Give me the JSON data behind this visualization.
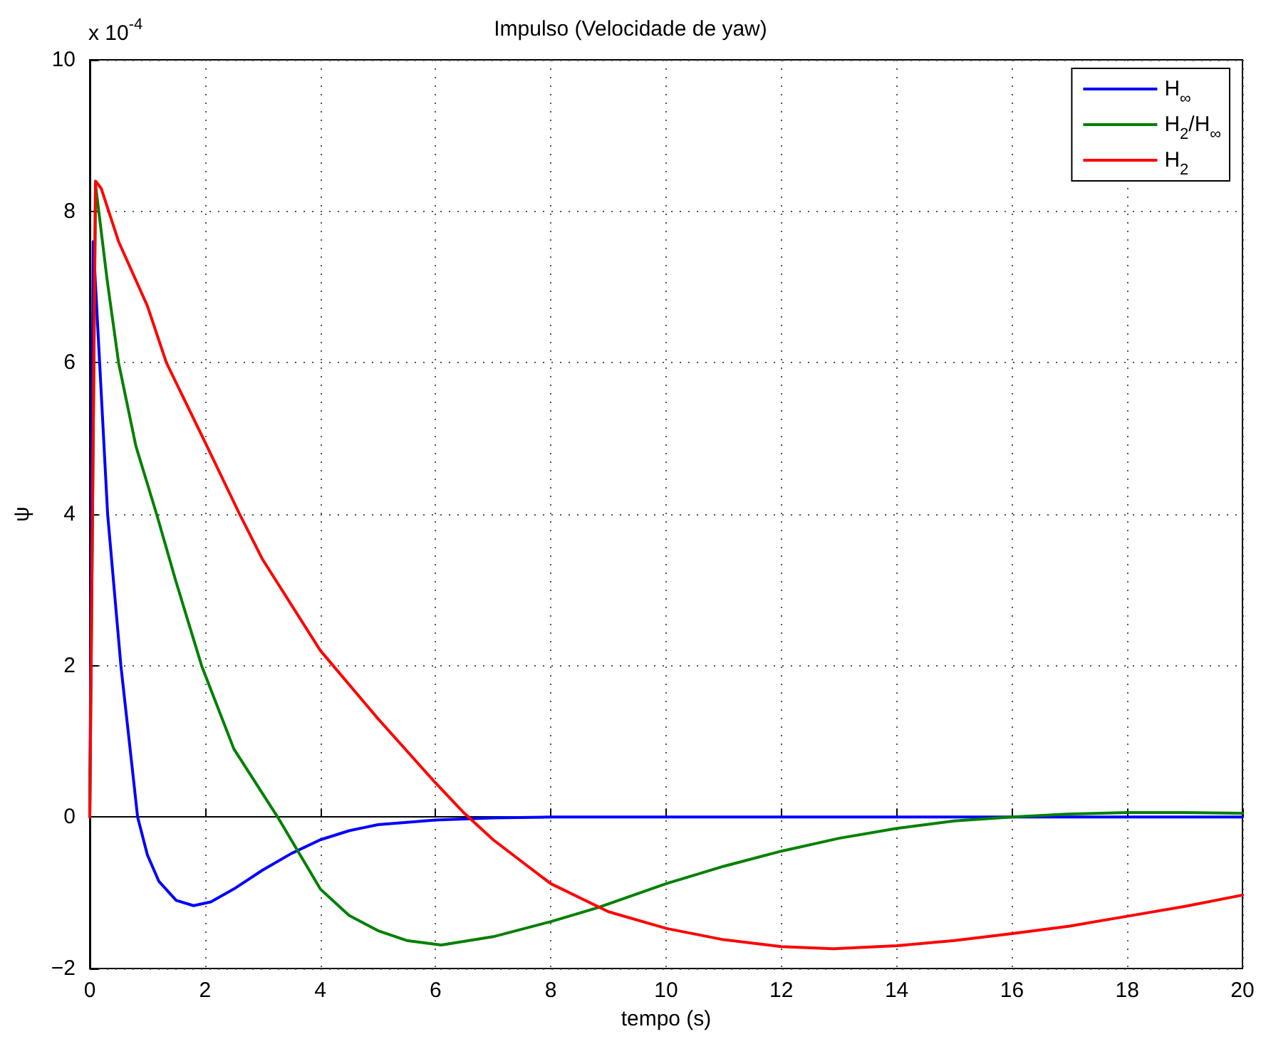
{
  "chart_data": {
    "type": "line",
    "title": "Impulso (Velocidade de yaw)",
    "xlabel": "tempo (s)",
    "ylabel": "ψ",
    "annotations": [
      "x 10$^{-4}$"
    ],
    "xlim": [
      0,
      20
    ],
    "xticks": [
      0,
      2,
      4,
      6,
      8,
      10,
      12,
      14,
      16,
      18,
      20
    ],
    "ylim": [
      -2,
      10
    ],
    "yticks": [
      -2,
      0,
      2,
      4,
      6,
      8,
      10
    ],
    "grid": true,
    "legend": "top right",
    "marker": "none",
    "line_style": "solid",
    "series": [
      {
        "name": "H$_{∞}$",
        "color": "#0000ff",
        "x": [
          0,
          0.06,
          0.31,
          0.54,
          0.7,
          0.83,
          1,
          1.2,
          1.5,
          1.8,
          2.1,
          2.5,
          3,
          3.5,
          4,
          4.5,
          5,
          6,
          7,
          8,
          20
        ],
        "values": [
          0,
          7.6,
          4.0,
          2.0,
          0.9,
          0,
          -0.5,
          -0.85,
          -1.1,
          -1.17,
          -1.12,
          -0.95,
          -0.7,
          -0.48,
          -0.3,
          -0.18,
          -0.1,
          -0.04,
          -0.01,
          0,
          0
        ]
      },
      {
        "name": "H$_{2}$/H$_{∞}$",
        "color": "#008000",
        "x": [
          0,
          0.1,
          0.3,
          0.5,
          0.8,
          1.16,
          1.5,
          1.94,
          2.5,
          3.26,
          4,
          4.5,
          5,
          5.5,
          6.1,
          7,
          8,
          8.8,
          10,
          11,
          12,
          13,
          14,
          15,
          16,
          17,
          18,
          19,
          20
        ],
        "values": [
          0,
          8.35,
          7.1,
          6.0,
          4.9,
          4.0,
          3.1,
          2.0,
          0.9,
          0,
          -0.95,
          -1.3,
          -1.5,
          -1.63,
          -1.69,
          -1.58,
          -1.38,
          -1.2,
          -0.88,
          -0.65,
          -0.45,
          -0.28,
          -0.15,
          -0.05,
          0,
          0.04,
          0.06,
          0.06,
          0.05
        ]
      },
      {
        "name": "H$_{2}$",
        "color": "#ff0000",
        "x": [
          0,
          0.1,
          0.2,
          0.5,
          1,
          1.33,
          2,
          2.6,
          3,
          4,
          5,
          6,
          6.5,
          7,
          8,
          9,
          10,
          11,
          12,
          12.9,
          14,
          15,
          16,
          17,
          18,
          19,
          20
        ],
        "values": [
          0,
          8.4,
          8.3,
          7.6,
          6.75,
          6.0,
          4.95,
          4.0,
          3.4,
          2.2,
          1.3,
          0.45,
          0.05,
          -0.3,
          -0.88,
          -1.25,
          -1.47,
          -1.62,
          -1.71,
          -1.74,
          -1.7,
          -1.63,
          -1.54,
          -1.44,
          -1.31,
          -1.18,
          -1.03
        ]
      }
    ]
  }
}
